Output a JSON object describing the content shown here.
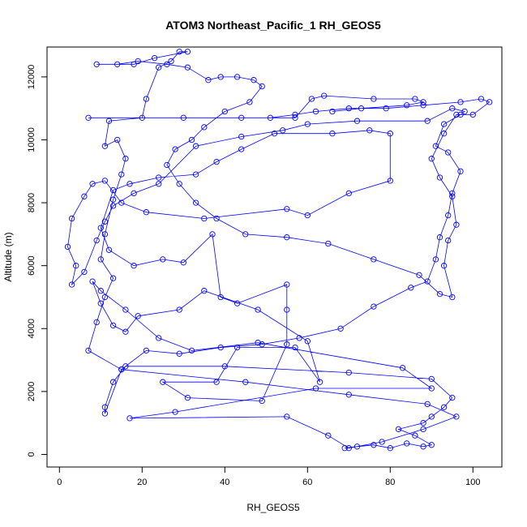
{
  "chart_data": {
    "type": "line",
    "title": "ATOM3 Northeast_Pacific_1 RH_GEOS5",
    "xlabel": "RH_GEOS5",
    "ylabel": "Altitude (m)",
    "xlim": [
      -3,
      107
    ],
    "ylim": [
      -400,
      12950
    ],
    "xticks": [
      0,
      20,
      40,
      60,
      80,
      100
    ],
    "yticks": [
      0,
      2000,
      4000,
      6000,
      8000,
      10000,
      12000
    ],
    "color": "#0000ff",
    "markers": "open-circle",
    "points": [
      [
        69,
        200
      ],
      [
        72,
        250
      ],
      [
        76,
        300
      ],
      [
        80,
        200
      ],
      [
        84,
        350
      ],
      [
        88,
        250
      ],
      [
        90,
        300
      ],
      [
        86,
        600
      ],
      [
        82,
        800
      ],
      [
        88,
        1000
      ],
      [
        90,
        1200
      ],
      [
        93,
        1500
      ],
      [
        95,
        1800
      ],
      [
        90,
        2400
      ],
      [
        70,
        2600
      ],
      [
        40,
        2800
      ],
      [
        16,
        2800
      ],
      [
        13,
        2300
      ],
      [
        11,
        1500
      ],
      [
        11,
        1300
      ],
      [
        15,
        2700
      ],
      [
        45,
        2300
      ],
      [
        70,
        1900
      ],
      [
        89,
        1600
      ],
      [
        96,
        1200
      ],
      [
        88,
        800
      ],
      [
        78,
        400
      ],
      [
        70,
        200
      ],
      [
        65,
        600
      ],
      [
        55,
        1200
      ],
      [
        17,
        1150
      ],
      [
        28,
        1350
      ],
      [
        62,
        2100
      ],
      [
        90,
        2100
      ],
      [
        83,
        2750
      ],
      [
        48,
        3550
      ],
      [
        32,
        3300
      ],
      [
        24,
        3700
      ],
      [
        16,
        4600
      ],
      [
        10,
        5200
      ],
      [
        8,
        5500
      ],
      [
        10,
        4800
      ],
      [
        13,
        4100
      ],
      [
        16,
        3900
      ],
      [
        19,
        4400
      ],
      [
        29,
        4600
      ],
      [
        35,
        5200
      ],
      [
        48,
        4600
      ],
      [
        60,
        3600
      ],
      [
        63,
        2300
      ],
      [
        57,
        3400
      ],
      [
        43,
        3400
      ],
      [
        38,
        2300
      ],
      [
        25,
        2300
      ],
      [
        31,
        1800
      ],
      [
        49,
        1700
      ],
      [
        55,
        3500
      ],
      [
        55,
        4600
      ],
      [
        55,
        5400
      ],
      [
        43,
        4800
      ],
      [
        39,
        5000
      ],
      [
        37,
        7000
      ],
      [
        30,
        6100
      ],
      [
        25,
        6200
      ],
      [
        18,
        6000
      ],
      [
        12,
        6500
      ],
      [
        10,
        7200
      ],
      [
        13,
        8400
      ],
      [
        17,
        8600
      ],
      [
        24,
        8800
      ],
      [
        33,
        8900
      ],
      [
        38,
        9300
      ],
      [
        44,
        9700
      ],
      [
        52,
        10200
      ],
      [
        66,
        10200
      ],
      [
        75,
        10300
      ],
      [
        80,
        10200
      ],
      [
        80,
        8700
      ],
      [
        70,
        8300
      ],
      [
        60,
        7600
      ],
      [
        55,
        7800
      ],
      [
        35,
        7500
      ],
      [
        21,
        7700
      ],
      [
        15,
        8000
      ],
      [
        11,
        8700
      ],
      [
        8,
        8600
      ],
      [
        6,
        8200
      ],
      [
        3,
        7500
      ],
      [
        2,
        6600
      ],
      [
        4,
        6000
      ],
      [
        3,
        5400
      ],
      [
        6,
        5800
      ],
      [
        9,
        6800
      ],
      [
        11,
        7400
      ],
      [
        13,
        7900
      ],
      [
        18,
        8300
      ],
      [
        24,
        8600
      ],
      [
        33,
        9800
      ],
      [
        44,
        10100
      ],
      [
        54,
        10300
      ],
      [
        60,
        10500
      ],
      [
        72,
        10600
      ],
      [
        89,
        10600
      ],
      [
        95,
        11000
      ],
      [
        98,
        10900
      ],
      [
        97,
        10800
      ],
      [
        93,
        10500
      ],
      [
        91,
        9800
      ],
      [
        94,
        9600
      ],
      [
        97,
        9000
      ],
      [
        95,
        8300
      ],
      [
        94,
        7600
      ],
      [
        92,
        6900
      ],
      [
        91,
        6200
      ],
      [
        89,
        5500
      ],
      [
        85,
        5300
      ],
      [
        76,
        4700
      ],
      [
        68,
        4000
      ],
      [
        58,
        3700
      ],
      [
        49,
        3500
      ],
      [
        39,
        3400
      ],
      [
        29,
        3200
      ],
      [
        21,
        3300
      ],
      [
        15,
        2700
      ],
      [
        7,
        3300
      ],
      [
        9,
        4200
      ],
      [
        11,
        5000
      ],
      [
        13,
        5600
      ],
      [
        10,
        6200
      ],
      [
        11,
        7000
      ],
      [
        13,
        8100
      ],
      [
        15,
        8900
      ],
      [
        16,
        9400
      ],
      [
        14,
        10000
      ],
      [
        11,
        9800
      ],
      [
        12,
        10600
      ],
      [
        20,
        10700
      ],
      [
        21,
        11300
      ],
      [
        24,
        12300
      ],
      [
        27,
        12500
      ],
      [
        29,
        12800
      ],
      [
        31,
        12800
      ],
      [
        23,
        12600
      ],
      [
        18,
        12400
      ],
      [
        9,
        12400
      ],
      [
        14,
        12400
      ],
      [
        19,
        12500
      ],
      [
        26,
        12400
      ],
      [
        31,
        12300
      ],
      [
        36,
        11900
      ],
      [
        39,
        12000
      ],
      [
        43,
        12000
      ],
      [
        47,
        11900
      ],
      [
        49,
        11700
      ],
      [
        46,
        11200
      ],
      [
        40,
        10900
      ],
      [
        35,
        10400
      ],
      [
        32,
        10000
      ],
      [
        28,
        9700
      ],
      [
        26,
        9200
      ],
      [
        29,
        8600
      ],
      [
        33,
        8000
      ],
      [
        38,
        7500
      ],
      [
        45,
        7000
      ],
      [
        55,
        6900
      ],
      [
        65,
        6700
      ],
      [
        76,
        6200
      ],
      [
        87,
        5700
      ],
      [
        92,
        5100
      ],
      [
        95,
        5000
      ],
      [
        93,
        6000
      ],
      [
        94,
        6800
      ],
      [
        96,
        7300
      ],
      [
        95,
        8200
      ],
      [
        92,
        8800
      ],
      [
        90,
        9400
      ],
      [
        93,
        10200
      ],
      [
        96,
        10800
      ],
      [
        100,
        10800
      ],
      [
        104,
        11200
      ],
      [
        102,
        11300
      ],
      [
        97,
        11200
      ],
      [
        88,
        11100
      ],
      [
        79,
        11000
      ],
      [
        70,
        11000
      ],
      [
        62,
        10900
      ],
      [
        57,
        10800
      ],
      [
        51,
        10700
      ],
      [
        44,
        10700
      ],
      [
        7,
        10700
      ],
      [
        30,
        10700
      ],
      [
        57,
        10700
      ],
      [
        61,
        11300
      ],
      [
        64,
        11400
      ],
      [
        76,
        11300
      ],
      [
        86,
        11300
      ],
      [
        88,
        11200
      ],
      [
        84,
        11100
      ],
      [
        73,
        11000
      ],
      [
        66,
        10900
      ]
    ]
  }
}
